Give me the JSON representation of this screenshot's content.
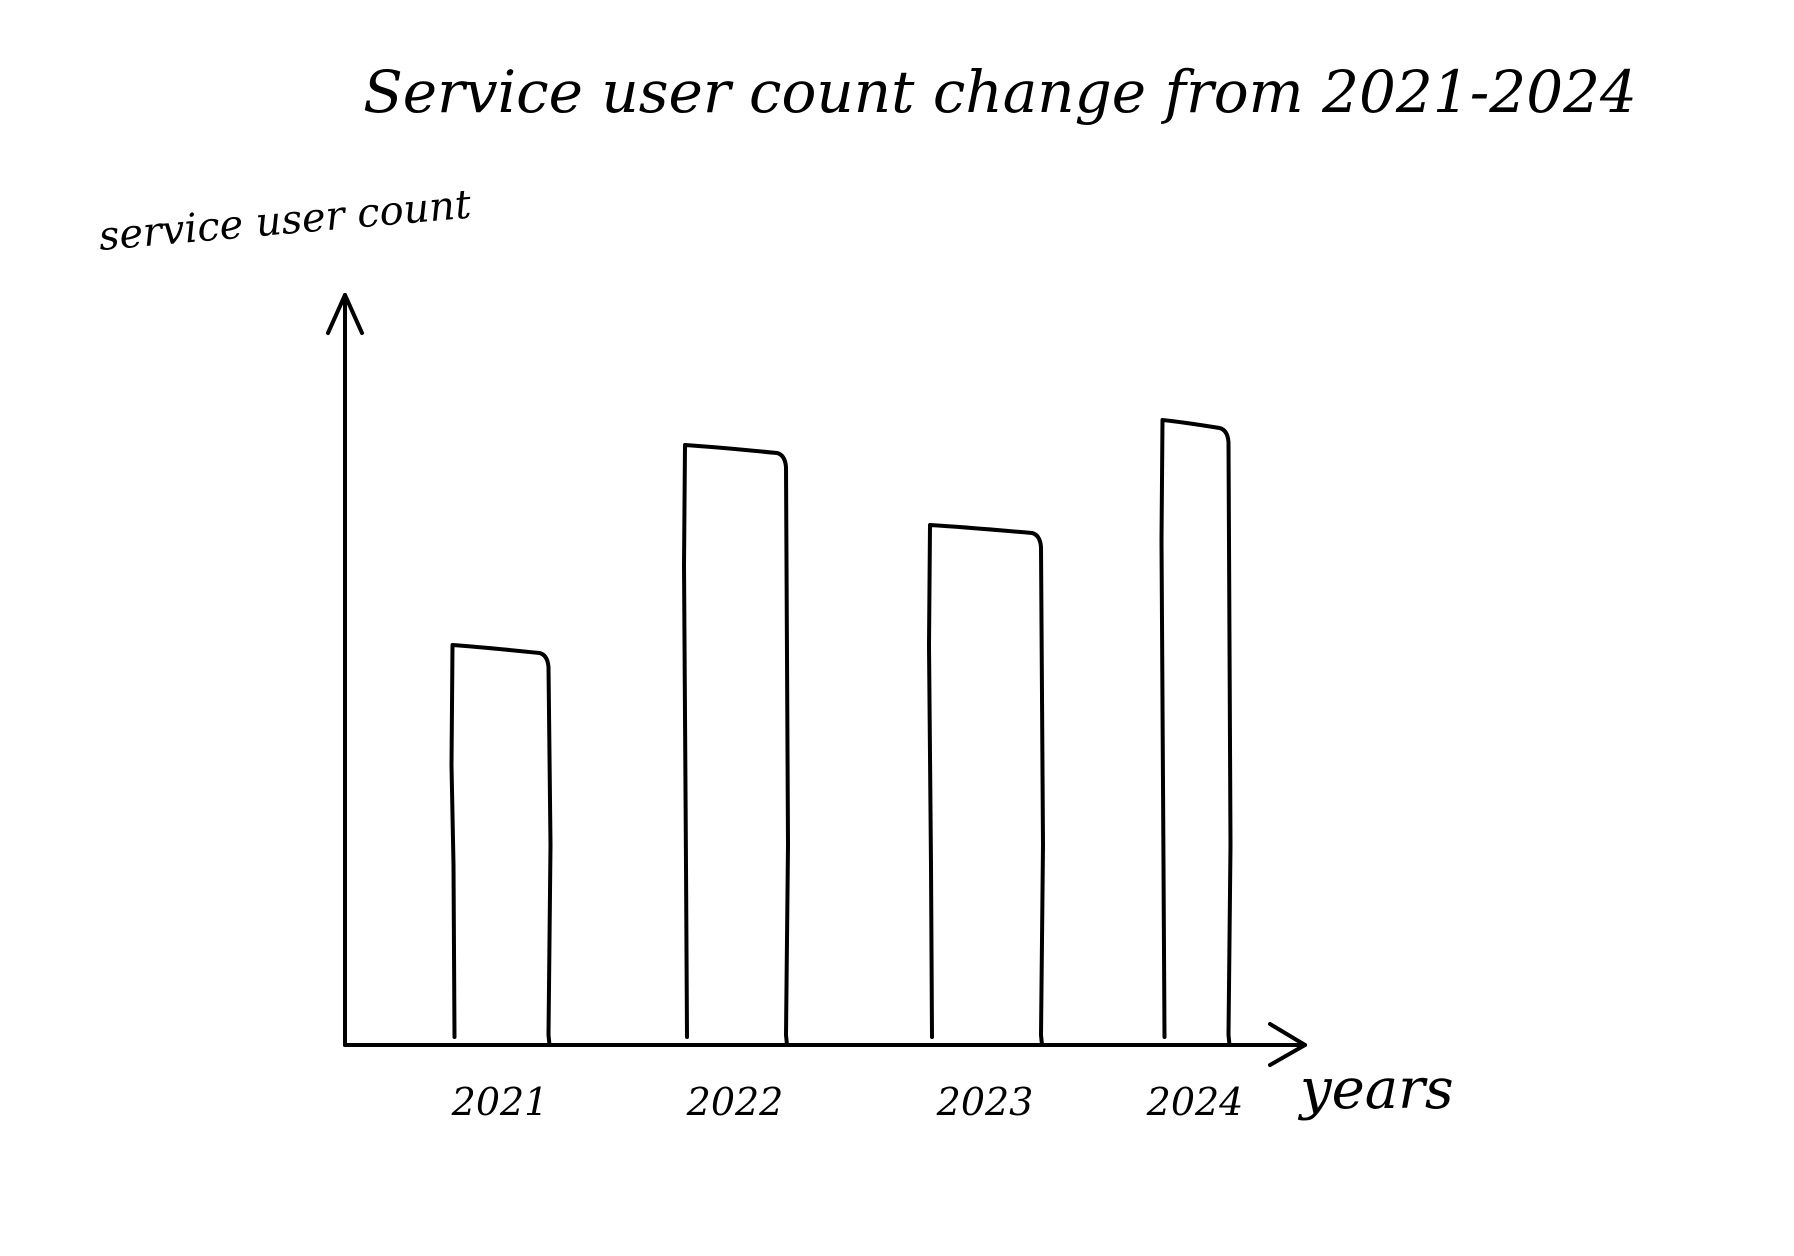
{
  "chart_data": {
    "type": "bar",
    "title": "Service user count change from 2021-2024",
    "xlabel": "years",
    "ylabel": "service user count",
    "categories": [
      "2021",
      "2022",
      "2023",
      "2024"
    ],
    "values": [
      400,
      600,
      520,
      625
    ],
    "ylim": [
      0,
      750
    ],
    "grid": false,
    "colors": {
      "ink": "#000000",
      "background": "#ffffff"
    }
  }
}
